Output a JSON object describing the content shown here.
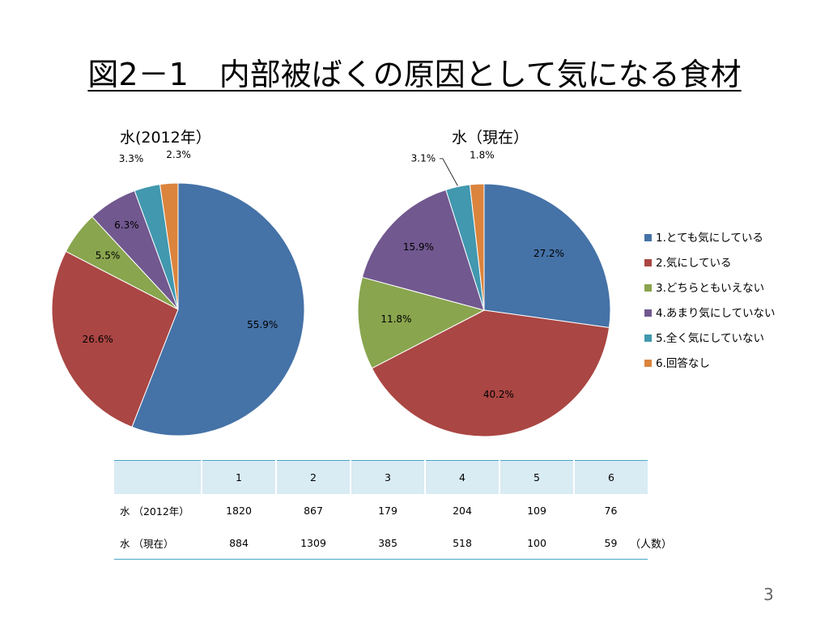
{
  "slide": {
    "title": "図2－1　内部被ばくの原因として気になる食材",
    "page_number": "3",
    "unit_note": "（人数）"
  },
  "colors": [
    "#4572a7",
    "#aa4643",
    "#89a54e",
    "#71588f",
    "#4198af",
    "#db843d"
  ],
  "chart_data": [
    {
      "type": "pie",
      "title": "水(2012年）",
      "categories": [
        "1.とても気にしている",
        "2.気にしている",
        "3.どちらともいえない",
        "4.あまり気にしていない",
        "5.全く気にしていない",
        "6.回答なし"
      ],
      "values": [
        55.9,
        26.6,
        5.5,
        6.3,
        3.3,
        2.3
      ],
      "labels": [
        "55.9%",
        "26.6%",
        "5.5%",
        "6.3%",
        "3.3%",
        "2.3%"
      ],
      "start": "12 o'clock",
      "direction": "clockwise"
    },
    {
      "type": "pie",
      "title": "水（現在）",
      "categories": [
        "1.とても気にしている",
        "2.気にしている",
        "3.どちらともいえない",
        "4.あまり気にしていない",
        "5.全く気にしていない",
        "6.回答なし"
      ],
      "values": [
        27.2,
        40.2,
        11.8,
        15.9,
        3.1,
        1.8
      ],
      "labels": [
        "27.2%",
        "40.2%",
        "11.8%",
        "15.9%",
        "3.1%",
        "1.8%"
      ],
      "start": "12 o'clock",
      "direction": "clockwise",
      "legend": "right"
    }
  ],
  "table": {
    "header": [
      "",
      "1",
      "2",
      "3",
      "4",
      "5",
      "6"
    ],
    "rows": [
      {
        "label": "水 （2012年）",
        "values": [
          "1820",
          "867",
          "179",
          "204",
          "109",
          "76"
        ]
      },
      {
        "label": "水 （現在）",
        "values": [
          "884",
          "1309",
          "385",
          "518",
          "100",
          "59"
        ]
      }
    ]
  }
}
